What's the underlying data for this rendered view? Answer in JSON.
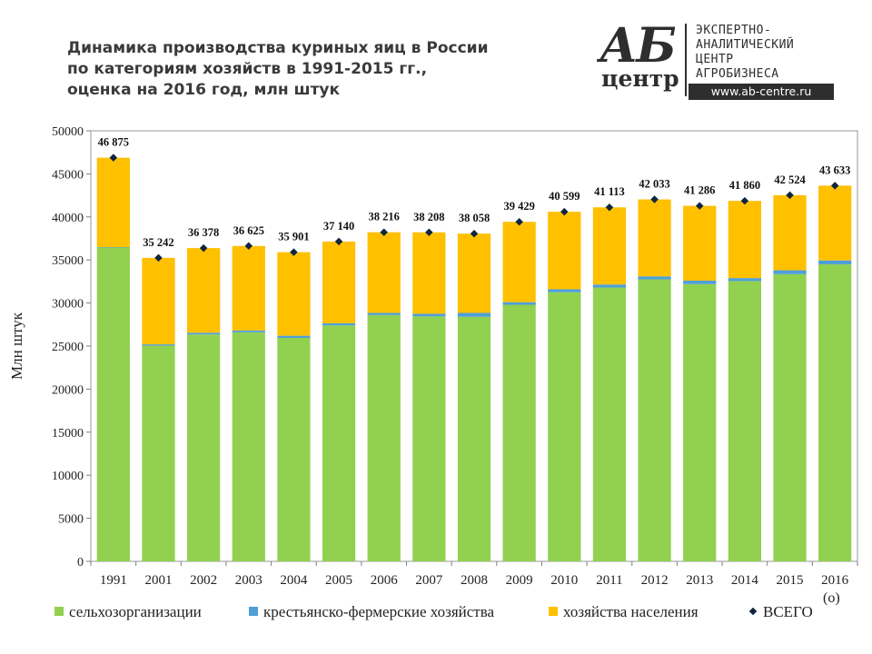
{
  "title": "Динамика производства куриных яиц в России\nпо категориям хозяйств в 1991-2015 гг.,\nоценка на 2016 год, млн штук",
  "logo": {
    "ab": "АБ",
    "centr": "центр",
    "lines": "ЭКСПЕРТНО-\nАНАЛИТИЧЕСКИЙ\nЦЕНТР\nАГРОБИЗНЕСА",
    "url": "www.ab-centre.ru"
  },
  "note": "(o)",
  "chart_data": {
    "type": "bar",
    "stacked": true,
    "categories": [
      "1991",
      "2001",
      "2002",
      "2003",
      "2004",
      "2005",
      "2006",
      "2007",
      "2008",
      "2009",
      "2010",
      "2011",
      "2012",
      "2013",
      "2014",
      "2015",
      "2016"
    ],
    "series": [
      {
        "name": "сельхозорганизации",
        "color": "#92d050",
        "values": [
          36450,
          25050,
          26350,
          26600,
          25950,
          27400,
          28600,
          28450,
          28400,
          29800,
          31250,
          31800,
          32750,
          32200,
          32550,
          33350,
          34500
        ]
      },
      {
        "name": "крестьянско-фермерские  хозяйства",
        "color": "#4f9fd8",
        "values": [
          50,
          150,
          200,
          200,
          250,
          250,
          250,
          300,
          450,
          300,
          350,
          350,
          350,
          400,
          350,
          450,
          450
        ]
      },
      {
        "name": "хозяйства  населения",
        "color": "#ffc000",
        "values": [
          10375,
          10042,
          9828,
          9825,
          9701,
          9490,
          9366,
          9458,
          9208,
          9329,
          8999,
          8963,
          8933,
          8686,
          8960,
          8724,
          8683
        ]
      }
    ],
    "totals_series": {
      "name": "ВСЕГО",
      "color": "#10253f",
      "values": [
        46875,
        35242,
        36378,
        36625,
        35901,
        37140,
        38216,
        38208,
        38058,
        39429,
        40599,
        41113,
        42033,
        41286,
        41860,
        42524,
        43633
      ]
    },
    "total_labels": [
      "46 875",
      "35 242",
      "36 378",
      "36 625",
      "35 901",
      "37 140",
      "38 216",
      "38 208",
      "38 058",
      "39 429",
      "40 599",
      "41 113",
      "42 033",
      "41 286",
      "41 860",
      "42 524",
      "43 633"
    ],
    "ylabel": "Млн штук",
    "xlabel": "",
    "ylim": [
      0,
      50000
    ],
    "yticks": [
      0,
      5000,
      10000,
      15000,
      20000,
      25000,
      30000,
      35000,
      40000,
      45000,
      50000
    ],
    "grid": false,
    "legend_position": "bottom"
  }
}
